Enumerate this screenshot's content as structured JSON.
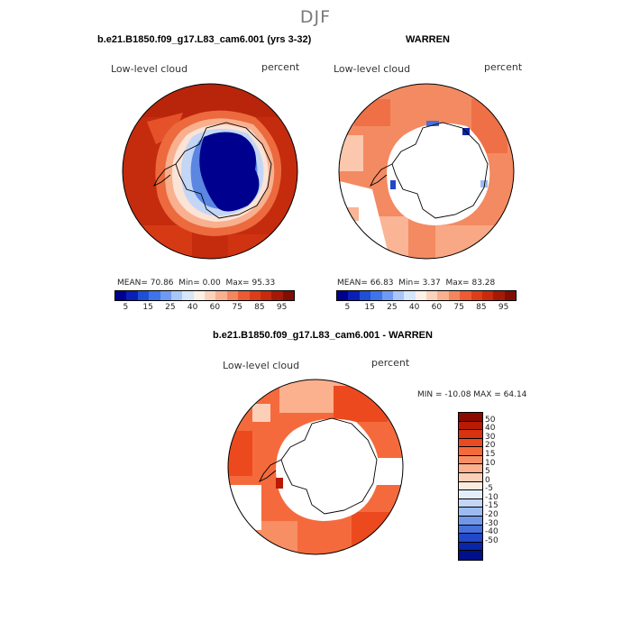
{
  "suptitle": "DJF",
  "chart_data": [
    {
      "type": "heatmap",
      "title": "b.e21.B1850.f09_g17.L83_cam6.001 (yrs 3-32)",
      "left_label": "Low-level cloud",
      "right_label": "percent",
      "stats": {
        "mean_label": "MEAN=",
        "mean": "70.86",
        "min_label": "Min=",
        "min": "0.00",
        "max_label": "Max=",
        "max": "95.33"
      },
      "colorbar": {
        "orientation": "horizontal",
        "ticks": [
          "5",
          "15",
          "25",
          "40",
          "60",
          "75",
          "85",
          "95"
        ],
        "colors": [
          "#00008f",
          "#0a1fb5",
          "#1e4fd6",
          "#3e74e8",
          "#6f9af2",
          "#a8c6f7",
          "#d6e6fb",
          "#fdf0e6",
          "#fbd3bd",
          "#f8b08f",
          "#f3865f",
          "#ec5b34",
          "#de3d1a",
          "#c82a0e",
          "#a51a07",
          "#7f0f04"
        ]
      }
    },
    {
      "type": "heatmap",
      "title": "WARREN",
      "left_label": "Low-level cloud",
      "right_label": "percent",
      "stats": {
        "mean_label": "MEAN=",
        "mean": "66.83",
        "min_label": "Min=",
        "min": "3.37",
        "max_label": "Max=",
        "max": "83.28"
      },
      "colorbar": {
        "orientation": "horizontal",
        "ticks": [
          "5",
          "15",
          "25",
          "40",
          "60",
          "75",
          "85",
          "95"
        ],
        "colors": [
          "#00008f",
          "#0a1fb5",
          "#1e4fd6",
          "#3e74e8",
          "#6f9af2",
          "#a8c6f7",
          "#d6e6fb",
          "#fdf0e6",
          "#fbd3bd",
          "#f8b08f",
          "#f3865f",
          "#ec5b34",
          "#de3d1a",
          "#c82a0e",
          "#a51a07",
          "#7f0f04"
        ]
      }
    },
    {
      "type": "heatmap",
      "title": "b.e21.B1850.f09_g17.L83_cam6.001 - WARREN",
      "left_label": "Low-level cloud",
      "right_label": "percent",
      "minmax_text": "MIN = -10.08 MAX =  64.14",
      "colorbar": {
        "orientation": "vertical",
        "ticks": [
          "50",
          "40",
          "30",
          "20",
          "15",
          "10",
          "5",
          "0",
          "-5",
          "-10",
          "-15",
          "-20",
          "-30",
          "-40",
          "-50"
        ],
        "colors": [
          "#8b0a00",
          "#b81a05",
          "#d8320e",
          "#ec4a1e",
          "#f56a3c",
          "#f88e64",
          "#fbb08e",
          "#fcd0b8",
          "#fdebe0",
          "#e4eefb",
          "#c3d6f6",
          "#9dbbf0",
          "#7098e6",
          "#4670dc",
          "#2048c8",
          "#0a26a6",
          "#00108a"
        ]
      }
    }
  ]
}
